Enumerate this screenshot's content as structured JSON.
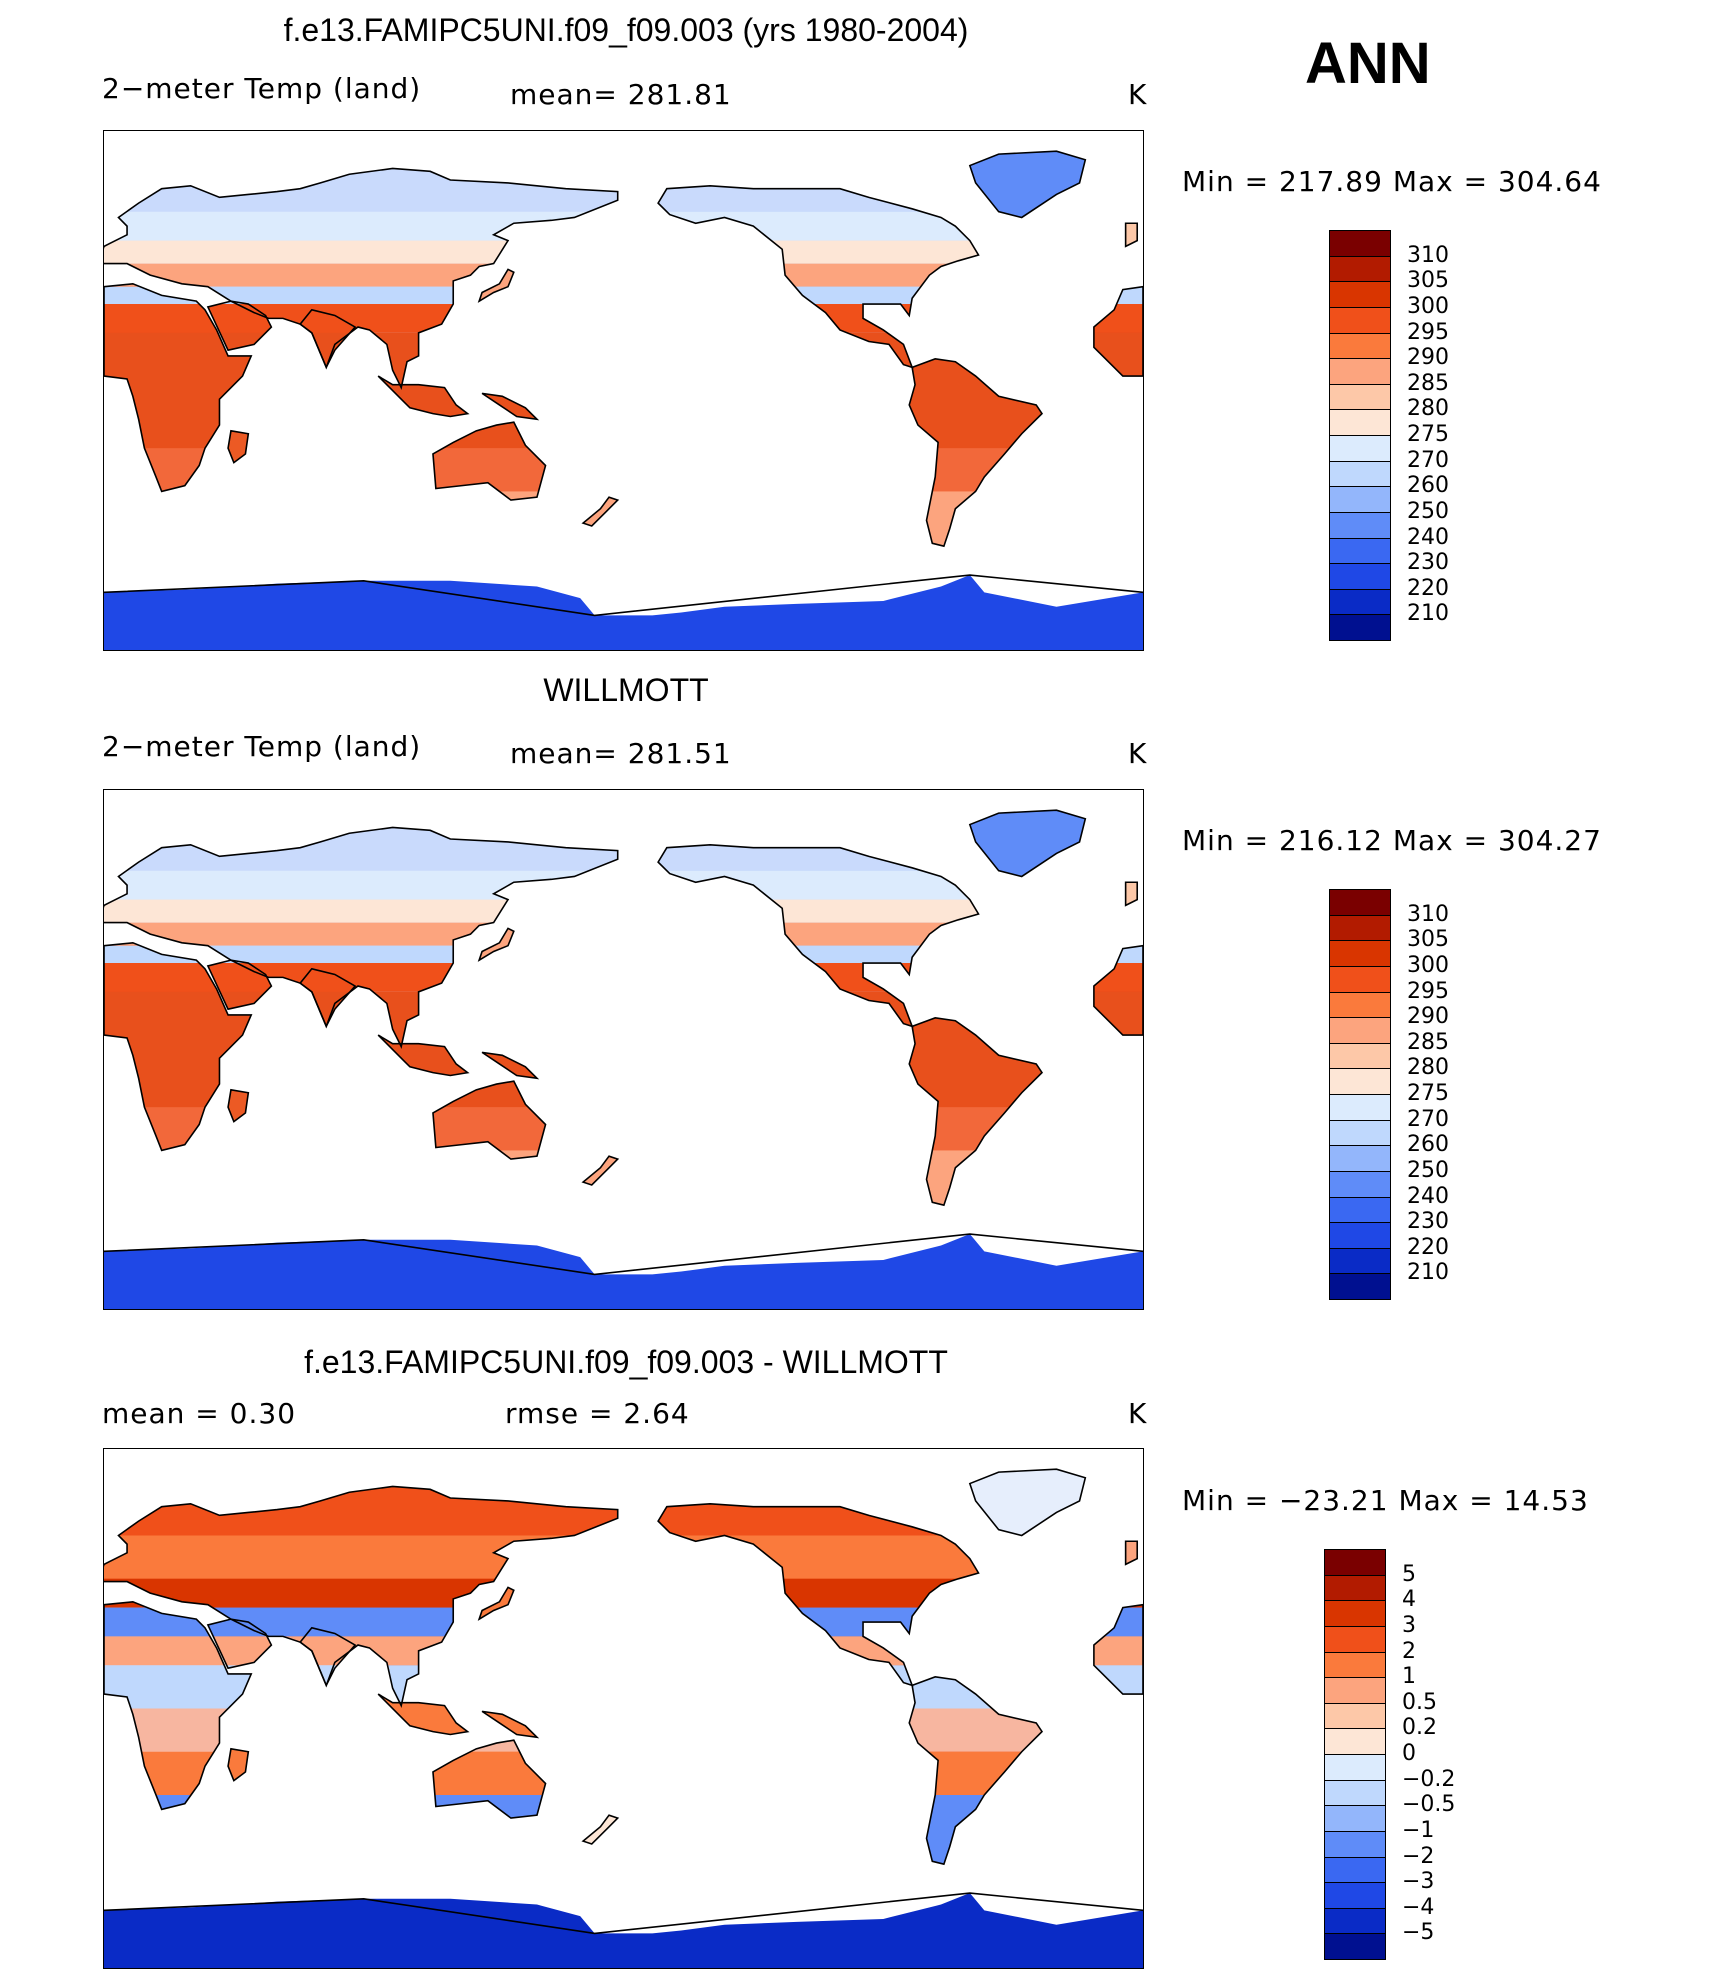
{
  "season": "ANN",
  "units": "K",
  "panels": [
    {
      "title": "f.e13.FAMIPC5UNI.f09_f09.003 (yrs 1980-2004)",
      "var_label": "2−meter Temp (land)",
      "stat_text": "mean=  281.81",
      "units": "K",
      "minmax": "Min  =  217.89  Max  =  304.64",
      "kind": "abs",
      "levels": [
        "310",
        "305",
        "300",
        "295",
        "290",
        "285",
        "280",
        "275",
        "270",
        "260",
        "250",
        "240",
        "230",
        "220",
        "210"
      ],
      "colors": [
        "#7a0000",
        "#b21b00",
        "#d93500",
        "#f0501a",
        "#fa7a3c",
        "#fca47e",
        "#fdc8a8",
        "#fde6d6",
        "#dcebfd",
        "#bfd8fd",
        "#93b6fb",
        "#5f8cf8",
        "#3a68f2",
        "#1f48e6",
        "#0a2bc6",
        "#001090"
      ]
    },
    {
      "title": "WILLMOTT",
      "var_label": "2−meter Temp (land)",
      "stat_text": "mean=  281.51",
      "units": "K",
      "minmax": "Min  =  216.12  Max  =  304.27",
      "kind": "abs",
      "levels": [
        "310",
        "305",
        "300",
        "295",
        "290",
        "285",
        "280",
        "275",
        "270",
        "260",
        "250",
        "240",
        "230",
        "220",
        "210"
      ],
      "colors": [
        "#7a0000",
        "#b21b00",
        "#d93500",
        "#f0501a",
        "#fa7a3c",
        "#fca47e",
        "#fdc8a8",
        "#fde6d6",
        "#dcebfd",
        "#bfd8fd",
        "#93b6fb",
        "#5f8cf8",
        "#3a68f2",
        "#1f48e6",
        "#0a2bc6",
        "#001090"
      ]
    },
    {
      "title": "f.e13.FAMIPC5UNI.f09_f09.003 - WILLMOTT",
      "var_label": "mean  =      0.30",
      "stat_text": "rmse  =      2.64",
      "units": "K",
      "minmax": "Min  =  −23.21  Max  =    14.53",
      "kind": "diff",
      "levels": [
        "5",
        "4",
        "3",
        "2",
        "1",
        "0.5",
        "0.2",
        "0",
        "−0.2",
        "−0.5",
        "−1",
        "−2",
        "−3",
        "−4",
        "−5"
      ],
      "colors": [
        "#7a0000",
        "#b21b00",
        "#d93500",
        "#f0501a",
        "#fa7a3c",
        "#fca47e",
        "#fdc8a8",
        "#fde6d6",
        "#dcebfd",
        "#bfd8fd",
        "#93b6fb",
        "#5f8cf8",
        "#3a68f2",
        "#1f48e6",
        "#0a2bc6",
        "#001090"
      ]
    }
  ]
}
